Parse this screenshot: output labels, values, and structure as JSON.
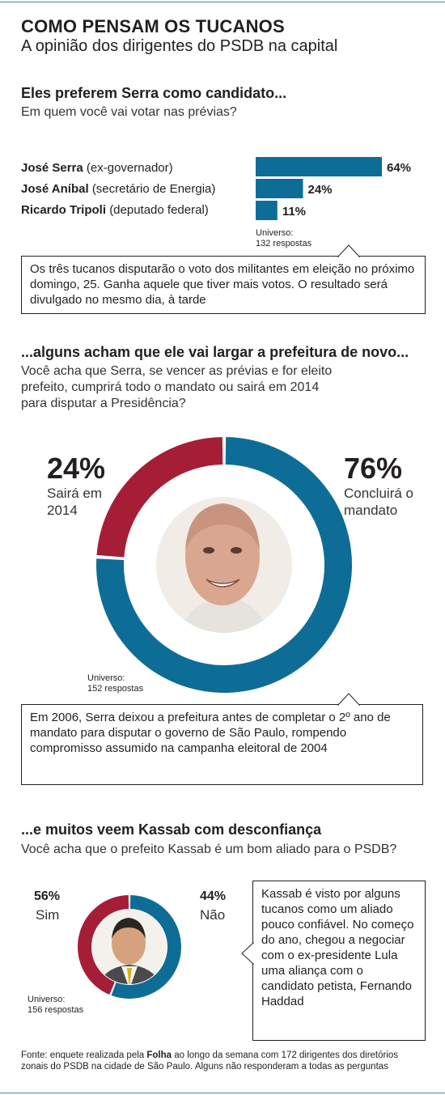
{
  "header": {
    "title": "COMO PENSAM OS TUCANOS",
    "subtitle": "A opinião dos dirigentes do PSDB na capital"
  },
  "colors": {
    "blue": "#0e6d96",
    "red": "#a51e36"
  },
  "section1": {
    "title": "Eles preferem Serra como candidato...",
    "question": "Em quem você vai votar nas prévias?",
    "universe_line1": "Universo:",
    "universe_line2": "132 respostas",
    "note": "Os três tucanos disputarão o voto dos militantes em eleição no próximo domingo, 25. Ganha aquele que tiver mais votos. O resultado será divulgado no mesmo dia, à tarde"
  },
  "section2": {
    "title": "...alguns acham que ele vai largar a prefeitura de novo...",
    "question": "Você acha que Serra, se vencer as prévias e for eleito prefeito, cumprirá todo o mandato ou sairá em 2014 para disputar a Presidência?",
    "universe_line1": "Universo:",
    "universe_line2": "152 respostas",
    "note": "Em 2006, Serra deixou a prefeitura antes de completar o 2º ano de mandato para disputar o governo de São Paulo, rompendo compromisso assumido na campanha eleitoral de 2004"
  },
  "section3": {
    "title": "...e muitos veem Kassab com desconfiança",
    "question": "Você acha que o prefeito Kassab é um bom aliado para o PSDB?",
    "universe_line1": "Universo:",
    "universe_line2": "156 respostas",
    "note": "Kassab é visto por alguns tucanos como um aliado pouco confiável. No começo do ano, chegou a negociar com o ex-presidente Lula uma aliança com o candidato petista, Fernando Haddad"
  },
  "footer": {
    "prefix": "Fonte: enquete realizada pela ",
    "brand": "Folha",
    "suffix": " ao longo da semana com 172 dirigentes dos diretórios zonais do PSDB na cidade de São Paulo. Alguns não responderam a todas as perguntas"
  },
  "chart_data": [
    {
      "type": "bar",
      "orientation": "horizontal",
      "categories": [
        {
          "name": "José Serra",
          "role": "(ex-governador)"
        },
        {
          "name": "José Aníbal",
          "role": "(secretário de Energia)"
        },
        {
          "name": "Ricardo Tripoli",
          "role": "(deputado federal)"
        }
      ],
      "values": [
        64,
        24,
        11
      ],
      "value_labels": [
        "64%",
        "24%",
        "11%"
      ],
      "color": "#0e6d96"
    },
    {
      "type": "pie",
      "donut": true,
      "slices": [
        {
          "label": "Concluirá o mandato",
          "value": 76,
          "value_label": "76%",
          "color": "#0e6d96"
        },
        {
          "label": "Sairá em 2014",
          "value": 24,
          "value_label": "24%",
          "color": "#a51e36"
        }
      ]
    },
    {
      "type": "pie",
      "donut": true,
      "slices": [
        {
          "label": "Sim",
          "value": 56,
          "value_label": "56%",
          "color": "#0e6d96"
        },
        {
          "label": "Não",
          "value": 44,
          "value_label": "44%",
          "color": "#a51e36"
        }
      ]
    }
  ]
}
